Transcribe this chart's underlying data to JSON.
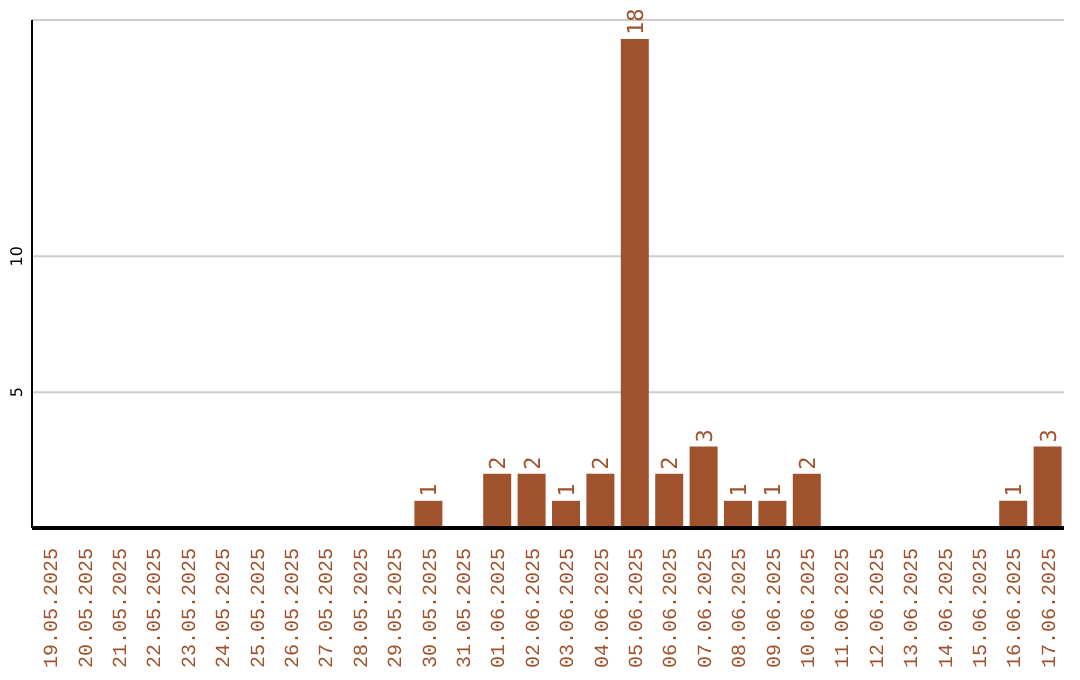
{
  "chart_data": {
    "type": "bar",
    "categories": [
      "19.05.2025",
      "20.05.2025",
      "21.05.2025",
      "22.05.2025",
      "23.05.2025",
      "24.05.2025",
      "25.05.2025",
      "26.05.2025",
      "27.05.2025",
      "28.05.2025",
      "29.05.2025",
      "30.05.2025",
      "31.05.2025",
      "01.06.2025",
      "02.06.2025",
      "03.06.2025",
      "04.06.2025",
      "05.06.2025",
      "06.06.2025",
      "07.06.2025",
      "08.06.2025",
      "09.06.2025",
      "10.06.2025",
      "11.06.2025",
      "12.06.2025",
      "13.06.2025",
      "14.06.2025",
      "15.06.2025",
      "16.06.2025",
      "17.06.2025"
    ],
    "values": [
      0,
      0,
      0,
      0,
      0,
      0,
      0,
      0,
      0,
      0,
      0,
      1,
      0,
      2,
      2,
      1,
      2,
      18,
      2,
      3,
      1,
      1,
      2,
      0,
      0,
      0,
      0,
      0,
      1,
      3
    ],
    "value_labels": [
      null,
      null,
      null,
      null,
      null,
      null,
      null,
      null,
      null,
      null,
      null,
      "1",
      null,
      "2",
      "2",
      "1",
      "2",
      "18",
      "2",
      "3",
      "1",
      "1",
      "2",
      null,
      null,
      null,
      null,
      null,
      "1",
      "3"
    ],
    "color": "#a0522d",
    "ylim": [
      0,
      18.7
    ],
    "yticks": [
      5,
      10
    ],
    "grid": "y"
  }
}
